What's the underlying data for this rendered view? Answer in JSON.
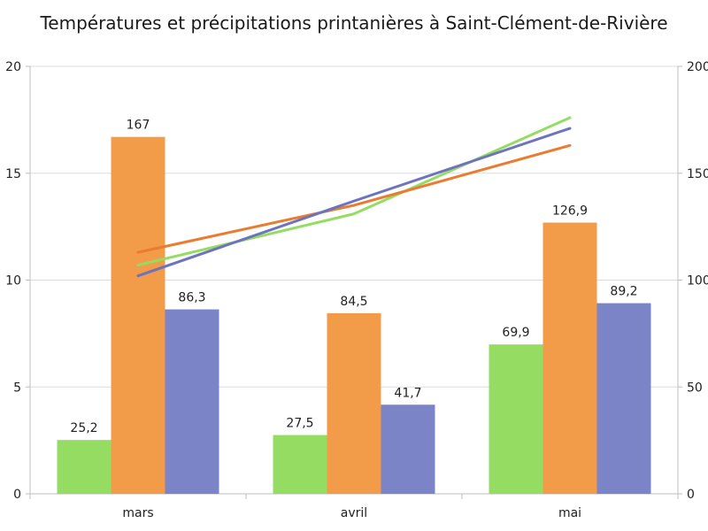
{
  "chart_data": {
    "type": "bar",
    "title": "Températures et précipitations printanières à Saint-Clément-de-Rivière",
    "categories": [
      "mars",
      "avril",
      "mai"
    ],
    "bar_series": [
      {
        "values": [
          25.2,
          27.5,
          69.9
        ],
        "value_labels": [
          "25,2",
          "27,5",
          "69,9"
        ],
        "color": "#95dc62"
      },
      {
        "values": [
          167,
          84.5,
          126.9
        ],
        "value_labels": [
          "167",
          "84,5",
          "126,9"
        ],
        "color": "#f29b48"
      },
      {
        "values": [
          86.3,
          41.7,
          89.2
        ],
        "value_labels": [
          "86,3",
          "41,7",
          "89,2"
        ],
        "color": "#7a84c7"
      }
    ],
    "line_series": [
      {
        "values": [
          10.7,
          13.1,
          17.6
        ],
        "color": "#95dc62"
      },
      {
        "values": [
          11.3,
          13.5,
          16.3
        ],
        "color": "#ea7b2f"
      },
      {
        "values": [
          10.2,
          13.7,
          17.1
        ],
        "color": "#6d73bd"
      }
    ],
    "left_axis": {
      "range": [
        0,
        20
      ],
      "ticks": [
        "0",
        "5",
        "10",
        "15",
        "20"
      ]
    },
    "right_axis": {
      "range": [
        0,
        200
      ],
      "ticks": [
        "0",
        "50",
        "100",
        "150",
        "200"
      ]
    },
    "grid": true
  }
}
